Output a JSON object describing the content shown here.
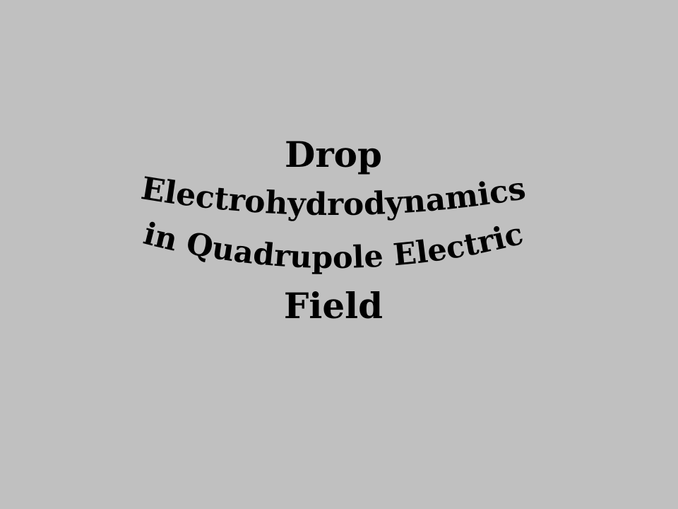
{
  "slide": {
    "background_color": "#c0c0c0",
    "text_color": "#000000",
    "title_lines": [
      "Drop",
      "Electrohydrodynamics",
      "in Quadrupole Electric",
      "Field"
    ]
  }
}
